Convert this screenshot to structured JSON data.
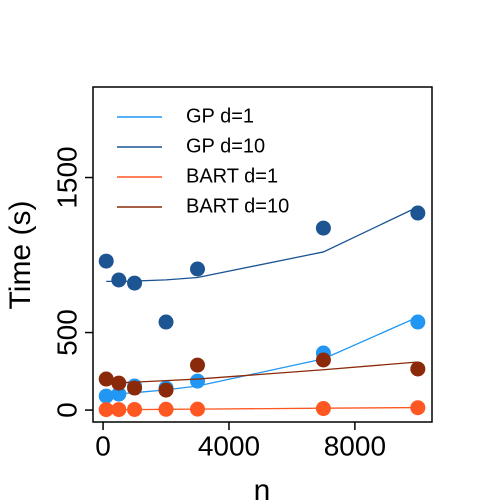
{
  "chart_data": {
    "type": "scatter",
    "x_label": "n",
    "y_label": "Time (s)",
    "x": [
      100,
      500,
      1000,
      2000,
      3000,
      7000,
      10000
    ],
    "xlim": [
      -320,
      10450
    ],
    "ylim": [
      -77,
      2084
    ],
    "xticks": [
      0,
      4000,
      8000
    ],
    "yticks": [
      0,
      500,
      1500
    ],
    "legend": "top-left",
    "series": [
      {
        "name": "GP d=1",
        "color": "#2196f3",
        "values": [
          90,
          103,
          155,
          142,
          187,
          368,
          568
        ],
        "fit": [
          100,
          105,
          112,
          130,
          155,
          330,
          600
        ]
      },
      {
        "name": "GP d=10",
        "color": "#1c5592",
        "values": [
          961,
          839,
          819,
          568,
          910,
          1174,
          1271
        ],
        "fit": [
          830,
          830,
          832,
          840,
          855,
          1020,
          1310
        ]
      },
      {
        "name": "BART d=1",
        "color": "#ff5722",
        "values": [
          3,
          3,
          4,
          5,
          6,
          10,
          15
        ],
        "fit": [
          2,
          3,
          3,
          5,
          6,
          12,
          16
        ]
      },
      {
        "name": "BART d=10",
        "color": "#8b2a0a",
        "values": [
          200,
          174,
          142,
          129,
          290,
          323,
          265
        ],
        "fit": [
          172,
          176,
          180,
          190,
          200,
          260,
          310
        ]
      }
    ]
  }
}
